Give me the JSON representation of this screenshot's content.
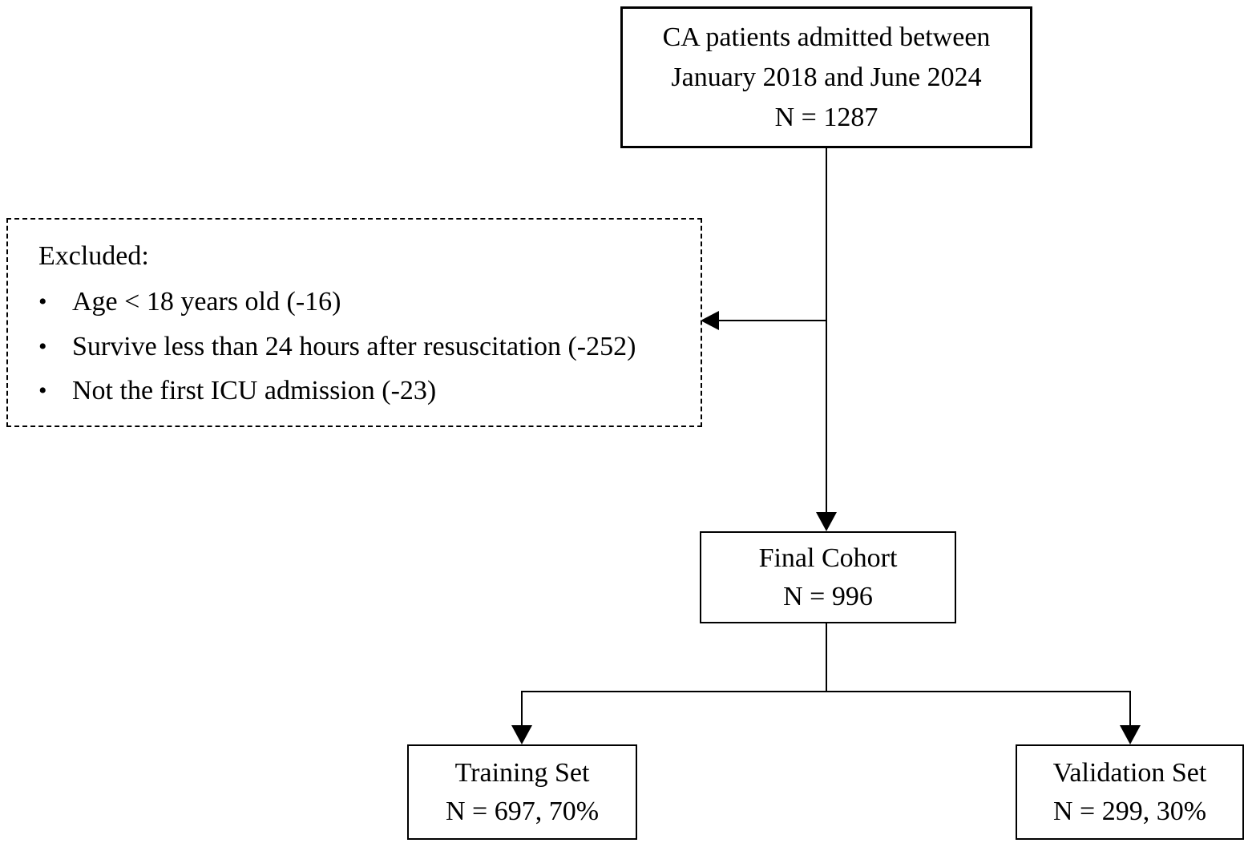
{
  "top_box": {
    "lines": [
      "CA patients admitted between",
      "January 2018 and June 2024",
      "N = 1287"
    ]
  },
  "excluded_box": {
    "title": "Excluded:",
    "bullet": "•",
    "items": [
      "Age < 18 years old (-16)",
      "Survive less than 24 hours after resuscitation (-252)",
      "Not the first ICU admission (-23)"
    ]
  },
  "final_box": {
    "lines": [
      "Final Cohort",
      "N = 996"
    ]
  },
  "training_box": {
    "lines": [
      "Training Set",
      "N = 697, 70%"
    ]
  },
  "validation_box": {
    "lines": [
      "Validation Set",
      "N = 299, 30%"
    ]
  },
  "colors": {
    "line": "#000000",
    "background": "#ffffff",
    "text": "#000000"
  }
}
